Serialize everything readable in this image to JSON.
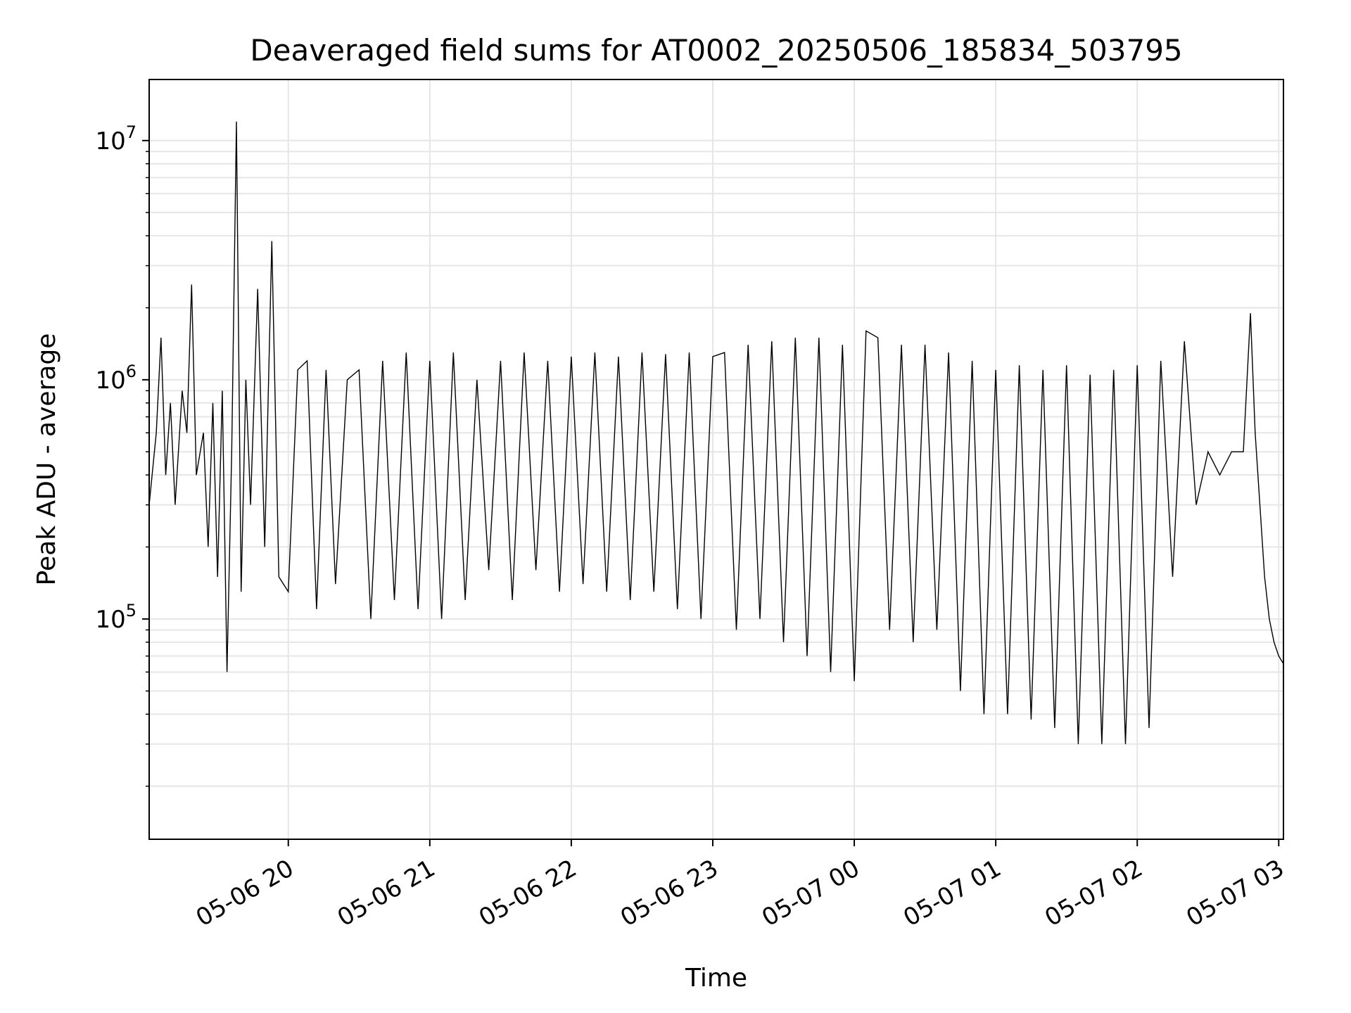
{
  "chart_data": {
    "type": "line",
    "title": "Deaveraged field sums for AT0002_20250506_185834_503795",
    "xlabel": "Time",
    "ylabel": "Peak ADU - average",
    "y_scale": "log",
    "ylim": [
      12000,
      18000000
    ],
    "xlim": [
      "2025-05-06 19:01",
      "2025-05-07 03:02"
    ],
    "grid": true,
    "line_color": "#000000",
    "grid_color": "#e6e6e6",
    "x_ticks": [
      {
        "value": "2025-05-06 20:00",
        "label": "05-06 20"
      },
      {
        "value": "2025-05-06 21:00",
        "label": "05-06 21"
      },
      {
        "value": "2025-05-06 22:00",
        "label": "05-06 22"
      },
      {
        "value": "2025-05-06 23:00",
        "label": "05-06 23"
      },
      {
        "value": "2025-05-07 00:00",
        "label": "05-07 00"
      },
      {
        "value": "2025-05-07 01:00",
        "label": "05-07 01"
      },
      {
        "value": "2025-05-07 02:00",
        "label": "05-07 02"
      },
      {
        "value": "2025-05-07 03:00",
        "label": "05-07 03"
      }
    ],
    "y_ticks": [
      {
        "value": 100000,
        "base": "10",
        "exp": "5"
      },
      {
        "value": 1000000,
        "base": "10",
        "exp": "6"
      },
      {
        "value": 10000000,
        "base": "10",
        "exp": "7"
      }
    ],
    "series": [
      {
        "x": [
          "2025-05-06 19:01",
          "2025-05-06 19:04",
          "2025-05-06 19:06",
          "2025-05-06 19:08",
          "2025-05-06 19:10",
          "2025-05-06 19:12",
          "2025-05-06 19:15",
          "2025-05-06 19:17",
          "2025-05-06 19:19",
          "2025-05-06 19:21",
          "2025-05-06 19:24",
          "2025-05-06 19:26",
          "2025-05-06 19:28",
          "2025-05-06 19:30",
          "2025-05-06 19:32",
          "2025-05-06 19:34",
          "2025-05-06 19:36",
          "2025-05-06 19:38",
          "2025-05-06 19:40",
          "2025-05-06 19:42",
          "2025-05-06 19:44",
          "2025-05-06 19:47",
          "2025-05-06 19:50",
          "2025-05-06 19:53",
          "2025-05-06 19:56",
          "2025-05-06 20:00",
          "2025-05-06 20:04",
          "2025-05-06 20:08",
          "2025-05-06 20:12",
          "2025-05-06 20:16",
          "2025-05-06 20:20",
          "2025-05-06 20:25",
          "2025-05-06 20:30",
          "2025-05-06 20:35",
          "2025-05-06 20:40",
          "2025-05-06 20:45",
          "2025-05-06 20:50",
          "2025-05-06 20:55",
          "2025-05-06 21:00",
          "2025-05-06 21:05",
          "2025-05-06 21:10",
          "2025-05-06 21:15",
          "2025-05-06 21:20",
          "2025-05-06 21:25",
          "2025-05-06 21:30",
          "2025-05-06 21:35",
          "2025-05-06 21:40",
          "2025-05-06 21:45",
          "2025-05-06 21:50",
          "2025-05-06 21:55",
          "2025-05-06 22:00",
          "2025-05-06 22:05",
          "2025-05-06 22:10",
          "2025-05-06 22:15",
          "2025-05-06 22:20",
          "2025-05-06 22:25",
          "2025-05-06 22:30",
          "2025-05-06 22:35",
          "2025-05-06 22:40",
          "2025-05-06 22:45",
          "2025-05-06 22:50",
          "2025-05-06 22:55",
          "2025-05-06 23:00",
          "2025-05-06 23:05",
          "2025-05-06 23:10",
          "2025-05-06 23:15",
          "2025-05-06 23:20",
          "2025-05-06 23:25",
          "2025-05-06 23:30",
          "2025-05-06 23:35",
          "2025-05-06 23:40",
          "2025-05-06 23:45",
          "2025-05-06 23:50",
          "2025-05-06 23:55",
          "2025-05-07 00:00",
          "2025-05-07 00:05",
          "2025-05-07 00:10",
          "2025-05-07 00:15",
          "2025-05-07 00:20",
          "2025-05-07 00:25",
          "2025-05-07 00:30",
          "2025-05-07 00:35",
          "2025-05-07 00:40",
          "2025-05-07 00:45",
          "2025-05-07 00:50",
          "2025-05-07 00:55",
          "2025-05-07 01:00",
          "2025-05-07 01:05",
          "2025-05-07 01:10",
          "2025-05-07 01:15",
          "2025-05-07 01:20",
          "2025-05-07 01:25",
          "2025-05-07 01:30",
          "2025-05-07 01:35",
          "2025-05-07 01:40",
          "2025-05-07 01:45",
          "2025-05-07 01:50",
          "2025-05-07 01:55",
          "2025-05-07 02:00",
          "2025-05-07 02:05",
          "2025-05-07 02:10",
          "2025-05-07 02:15",
          "2025-05-07 02:20",
          "2025-05-07 02:25",
          "2025-05-07 02:30",
          "2025-05-07 02:35",
          "2025-05-07 02:40",
          "2025-05-07 02:45",
          "2025-05-07 02:48",
          "2025-05-07 02:50",
          "2025-05-07 02:52",
          "2025-05-07 02:54",
          "2025-05-07 02:56",
          "2025-05-07 02:58",
          "2025-05-07 03:00",
          "2025-05-07 03:02"
        ],
        "y": [
          300000,
          600000,
          1500000,
          400000,
          800000,
          300000,
          900000,
          600000,
          2500000,
          400000,
          600000,
          200000,
          800000,
          150000,
          900000,
          60000,
          500000,
          12000000,
          130000,
          1000000,
          300000,
          2400000,
          200000,
          3800000,
          150000,
          130000,
          1100000,
          1200000,
          110000,
          1100000,
          140000,
          1000000,
          1100000,
          100000,
          1200000,
          120000,
          1300000,
          110000,
          1200000,
          100000,
          1300000,
          120000,
          1000000,
          160000,
          1200000,
          120000,
          1300000,
          160000,
          1200000,
          130000,
          1250000,
          140000,
          1300000,
          130000,
          1250000,
          120000,
          1300000,
          130000,
          1280000,
          110000,
          1300000,
          100000,
          1250000,
          1300000,
          90000,
          1400000,
          100000,
          1450000,
          80000,
          1500000,
          70000,
          1500000,
          60000,
          1400000,
          55000,
          1600000,
          1500000,
          90000,
          1400000,
          80000,
          1400000,
          90000,
          1300000,
          50000,
          1200000,
          40000,
          1100000,
          40000,
          1150000,
          38000,
          1100000,
          35000,
          1150000,
          30000,
          1050000,
          30000,
          1100000,
          30000,
          1150000,
          35000,
          1200000,
          150000,
          1450000,
          300000,
          500000,
          400000,
          500000,
          500000,
          1900000,
          600000,
          300000,
          150000,
          100000,
          80000,
          70000,
          65000
        ]
      }
    ]
  }
}
